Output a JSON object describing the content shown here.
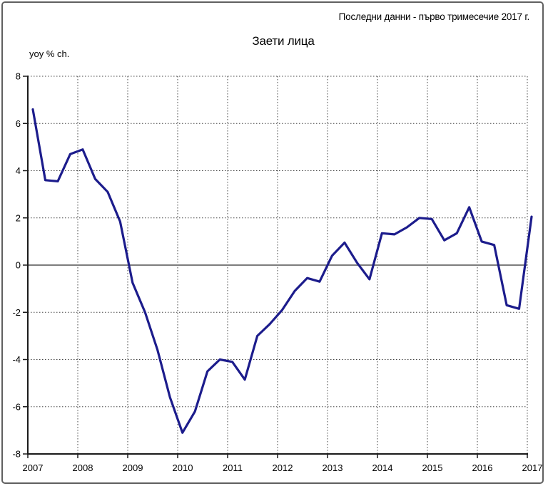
{
  "page": {
    "background": "#FFFFFF",
    "frame_border_color": "#606060"
  },
  "chart_data": {
    "type": "line",
    "title": "Заети лица",
    "note": "Последни данни - първо тримесечие 2017 г.",
    "ylabel": "yoy % ch.",
    "xlabel": "",
    "x_years": [
      "2007",
      "2008",
      "2009",
      "2010",
      "2011",
      "2012",
      "2013",
      "2014",
      "2015",
      "2016",
      "2017"
    ],
    "x_unit": "quarter",
    "x_start": "2007Q1",
    "x_end": "2017Q1",
    "ylim": [
      -8,
      8
    ],
    "ytick_step": 2,
    "y_tick_labels": [
      "8",
      "6",
      "4",
      "2",
      "0",
      "-2",
      "-4",
      "-6",
      "-8"
    ],
    "grid": "dashed",
    "legend": "none",
    "line_color": "#1C1C8C",
    "zero_line_color": "#7D7D7D",
    "series": [
      {
        "name": "Заети лица (yoy % ch.)",
        "values": [
          6.6,
          3.6,
          3.55,
          4.7,
          4.9,
          3.65,
          3.1,
          1.85,
          -0.75,
          -2.0,
          -3.6,
          -5.6,
          -7.1,
          -6.2,
          -4.5,
          -4.0,
          -4.1,
          -4.85,
          -3.0,
          -2.5,
          -1.9,
          -1.1,
          -0.55,
          -0.7,
          0.4,
          0.95,
          0.1,
          -0.6,
          1.35,
          1.3,
          1.6,
          2.0,
          1.95,
          1.05,
          1.35,
          2.45,
          1.0,
          0.85,
          -1.7,
          -1.85,
          2.05
        ]
      }
    ]
  }
}
